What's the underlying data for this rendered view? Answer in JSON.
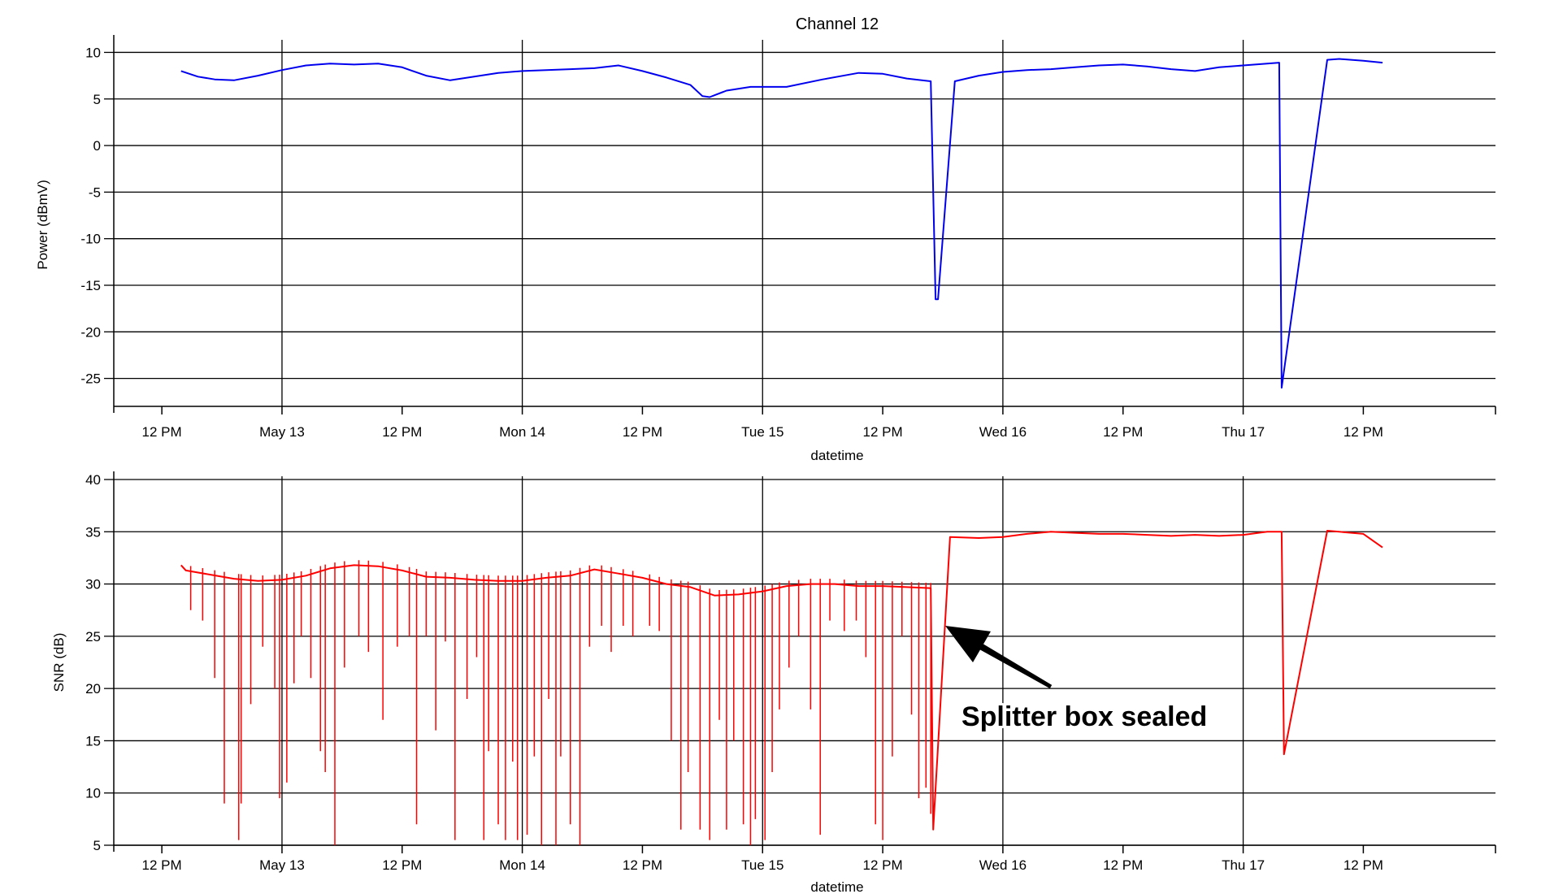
{
  "chart_data": [
    {
      "type": "line",
      "title": "Channel 12",
      "xlabel": "datetime",
      "ylabel": "Power (dBmV)",
      "ylim": [
        -28,
        11
      ],
      "yticks": [
        10,
        5,
        0,
        -5,
        -10,
        -15,
        -20,
        -25
      ],
      "xlim": [
        -0.2,
        5.55
      ],
      "xticks": [
        {
          "x": 0,
          "label": "12 PM"
        },
        {
          "x": 0.5,
          "label": "May 13"
        },
        {
          "x": 1,
          "label": "12 PM"
        },
        {
          "x": 1.5,
          "label": "Mon 14"
        },
        {
          "x": 2,
          "label": "12 PM"
        },
        {
          "x": 2.5,
          "label": "Tue 15"
        },
        {
          "x": 3,
          "label": "12 PM"
        },
        {
          "x": 3.5,
          "label": "Wed 16"
        },
        {
          "x": 4,
          "label": "12 PM"
        },
        {
          "x": 4.5,
          "label": "Thu 17"
        },
        {
          "x": 5,
          "label": "12 PM"
        }
      ],
      "grid": true,
      "color": "#0000ee",
      "series": [
        {
          "x": [
            0.08,
            0.15,
            0.22,
            0.3,
            0.4,
            0.5,
            0.6,
            0.7,
            0.8,
            0.9,
            1.0,
            1.1,
            1.2,
            1.3,
            1.4,
            1.5,
            1.6,
            1.7,
            1.8,
            1.9,
            2.0,
            2.1,
            2.2,
            2.25,
            2.28,
            2.3,
            2.35,
            2.45,
            2.6,
            2.75,
            2.9,
            3.0,
            3.1,
            3.2,
            3.22,
            3.23,
            3.3,
            3.4,
            3.5,
            3.6,
            3.7,
            3.8,
            3.9,
            4.0,
            4.1,
            4.2,
            4.3,
            4.4,
            4.5,
            4.6,
            4.65,
            4.66,
            4.85,
            4.9,
            5.0,
            5.08
          ],
          "y": [
            8.0,
            7.4,
            7.1,
            7.0,
            7.5,
            8.1,
            8.6,
            8.8,
            8.7,
            8.8,
            8.4,
            7.5,
            7.0,
            7.4,
            7.8,
            8.0,
            8.1,
            8.2,
            8.3,
            8.6,
            8.0,
            7.3,
            6.5,
            5.3,
            5.2,
            5.4,
            5.9,
            6.3,
            6.3,
            7.1,
            7.8,
            7.7,
            7.2,
            6.9,
            -16.5,
            -16.5,
            6.9,
            7.5,
            7.9,
            8.1,
            8.2,
            8.4,
            8.6,
            8.7,
            8.5,
            8.2,
            8.0,
            8.4,
            8.6,
            8.8,
            8.9,
            -26.0,
            9.2,
            9.3,
            9.1,
            8.9
          ]
        }
      ]
    },
    {
      "type": "line",
      "title": "",
      "xlabel": "datetime",
      "ylabel": "SNR (dB)",
      "ylim": [
        5,
        40
      ],
      "yticks": [
        40,
        35,
        30,
        25,
        20,
        15,
        10,
        5
      ],
      "xlim": [
        -0.2,
        5.55
      ],
      "xticks": [
        {
          "x": 0,
          "label": "12 PM"
        },
        {
          "x": 0.5,
          "label": "May 13"
        },
        {
          "x": 1,
          "label": "12 PM"
        },
        {
          "x": 1.5,
          "label": "Mon 14"
        },
        {
          "x": 2,
          "label": "12 PM"
        },
        {
          "x": 2.5,
          "label": "Tue 15"
        },
        {
          "x": 3,
          "label": "12 PM"
        },
        {
          "x": 3.5,
          "label": "Wed 16"
        },
        {
          "x": 4,
          "label": "12 PM"
        },
        {
          "x": 4.5,
          "label": "Thu 17"
        },
        {
          "x": 5,
          "label": "12 PM"
        }
      ],
      "grid": true,
      "color": "#ff0000",
      "series": [
        {
          "x": [
            0.08,
            0.1,
            0.2,
            0.3,
            0.4,
            0.5,
            0.6,
            0.7,
            0.8,
            0.9,
            1.0,
            1.1,
            1.2,
            1.3,
            1.4,
            1.5,
            1.6,
            1.7,
            1.8,
            1.9,
            2.0,
            2.1,
            2.2,
            2.3,
            2.4,
            2.5,
            2.6,
            2.7,
            2.8,
            2.9,
            3.0,
            3.1,
            3.2,
            3.21,
            3.28,
            3.4,
            3.5,
            3.6,
            3.7,
            3.8,
            3.9,
            4.0,
            4.1,
            4.2,
            4.3,
            4.4,
            4.5,
            4.6,
            4.66,
            4.67,
            4.85,
            4.9,
            5.0,
            5.08
          ],
          "y": [
            31.8,
            31.3,
            30.9,
            30.5,
            30.3,
            30.4,
            30.8,
            31.5,
            31.8,
            31.7,
            31.3,
            30.7,
            30.6,
            30.4,
            30.3,
            30.3,
            30.6,
            30.8,
            31.4,
            31.0,
            30.6,
            30.0,
            29.7,
            28.9,
            29.0,
            29.3,
            29.8,
            30.0,
            30.0,
            29.8,
            29.8,
            29.7,
            29.6,
            6.5,
            34.5,
            34.4,
            34.5,
            34.8,
            35.0,
            34.9,
            34.8,
            34.8,
            34.7,
            34.6,
            34.7,
            34.6,
            34.7,
            35.0,
            35.0,
            13.7,
            35.1,
            35.0,
            34.8,
            33.5
          ]
        }
      ],
      "dips": [
        [
          0.12,
          27.5
        ],
        [
          0.17,
          26.5
        ],
        [
          0.22,
          21.0
        ],
        [
          0.26,
          9.0
        ],
        [
          0.32,
          5.5
        ],
        [
          0.33,
          9.0
        ],
        [
          0.37,
          18.5
        ],
        [
          0.42,
          24.0
        ],
        [
          0.47,
          20.0
        ],
        [
          0.49,
          9.5
        ],
        [
          0.52,
          11.0
        ],
        [
          0.55,
          20.5
        ],
        [
          0.58,
          25.0
        ],
        [
          0.62,
          21.0
        ],
        [
          0.66,
          14.0
        ],
        [
          0.68,
          12.0
        ],
        [
          0.72,
          5.0
        ],
        [
          0.76,
          22.0
        ],
        [
          0.82,
          25.0
        ],
        [
          0.86,
          23.5
        ],
        [
          0.92,
          17.0
        ],
        [
          0.98,
          24.0
        ],
        [
          1.03,
          25.0
        ],
        [
          1.06,
          7.0
        ],
        [
          1.1,
          25.0
        ],
        [
          1.14,
          16.0
        ],
        [
          1.18,
          24.5
        ],
        [
          1.22,
          5.5
        ],
        [
          1.27,
          19.0
        ],
        [
          1.31,
          23.0
        ],
        [
          1.34,
          5.5
        ],
        [
          1.36,
          14.0
        ],
        [
          1.4,
          7.0
        ],
        [
          1.43,
          5.5
        ],
        [
          1.46,
          13.0
        ],
        [
          1.48,
          5.5
        ],
        [
          1.52,
          6.0
        ],
        [
          1.55,
          13.5
        ],
        [
          1.58,
          5.0
        ],
        [
          1.61,
          19.0
        ],
        [
          1.64,
          5.0
        ],
        [
          1.66,
          13.5
        ],
        [
          1.7,
          7.0
        ],
        [
          1.74,
          5.0
        ],
        [
          1.78,
          24.0
        ],
        [
          1.83,
          26.0
        ],
        [
          1.87,
          23.5
        ],
        [
          1.92,
          26.0
        ],
        [
          1.96,
          25.0
        ],
        [
          2.03,
          26.0
        ],
        [
          2.07,
          25.5
        ],
        [
          2.12,
          15.0
        ],
        [
          2.16,
          6.5
        ],
        [
          2.19,
          12.0
        ],
        [
          2.24,
          6.5
        ],
        [
          2.28,
          5.5
        ],
        [
          2.32,
          17.0
        ],
        [
          2.35,
          6.5
        ],
        [
          2.38,
          15.0
        ],
        [
          2.42,
          7.0
        ],
        [
          2.45,
          5.0
        ],
        [
          2.47,
          7.5
        ],
        [
          2.51,
          5.5
        ],
        [
          2.54,
          12.0
        ],
        [
          2.57,
          18.0
        ],
        [
          2.61,
          22.0
        ],
        [
          2.65,
          25.0
        ],
        [
          2.7,
          18.0
        ],
        [
          2.74,
          6.0
        ],
        [
          2.78,
          26.5
        ],
        [
          2.84,
          25.5
        ],
        [
          2.89,
          26.5
        ],
        [
          2.93,
          23.0
        ],
        [
          2.97,
          7.0
        ],
        [
          3.0,
          5.5
        ],
        [
          3.04,
          13.5
        ],
        [
          3.08,
          25.0
        ],
        [
          3.12,
          17.5
        ],
        [
          3.15,
          9.5
        ],
        [
          3.18,
          10.5
        ],
        [
          3.2,
          8.0
        ]
      ]
    }
  ],
  "annotation": {
    "text": "Splitter box sealed",
    "arrow_tip": {
      "x": 3.26,
      "y": 26.0
    },
    "color": "#000000"
  }
}
